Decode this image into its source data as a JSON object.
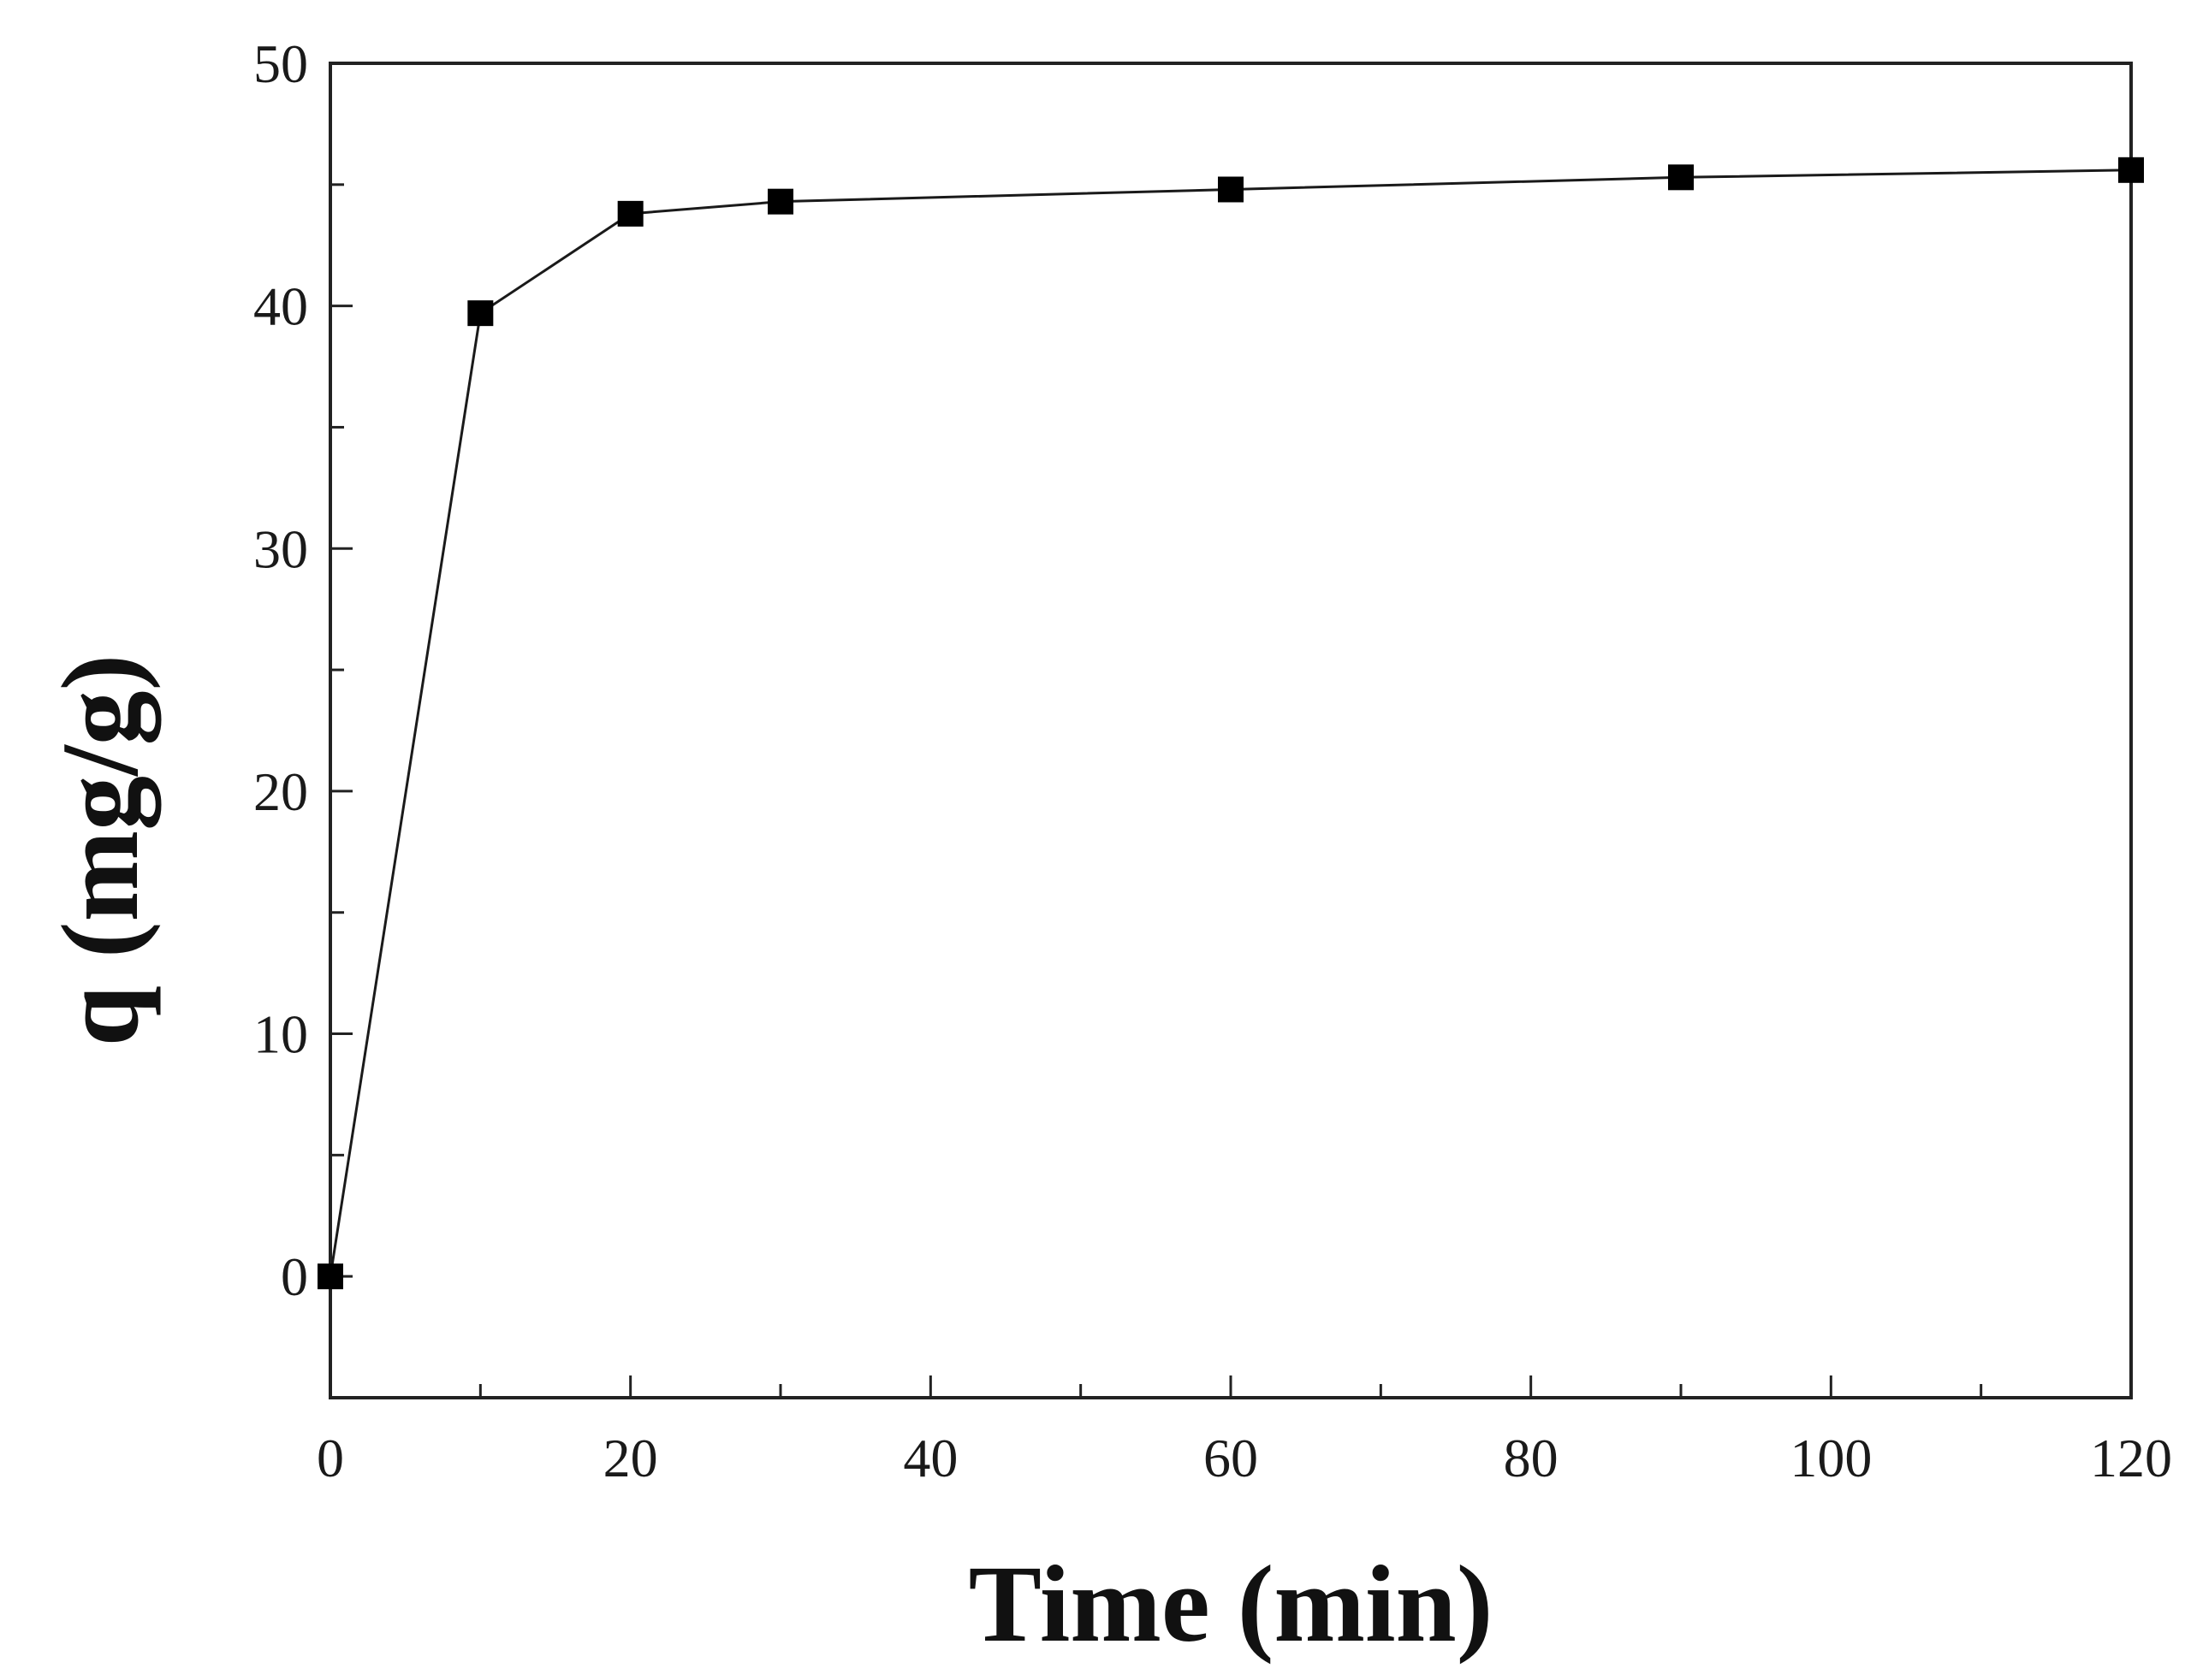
{
  "chart_data": {
    "type": "line",
    "title": "",
    "xlabel": "Time (min)",
    "ylabel": "q (mg/g)",
    "xlim": [
      0,
      120
    ],
    "ylim": [
      -5,
      50
    ],
    "x_ticks": [
      0,
      20,
      40,
      60,
      80,
      100,
      120
    ],
    "x_tick_labels": [
      "0",
      "20",
      "40",
      "60",
      "80",
      "100",
      "120"
    ],
    "y_ticks": [
      0,
      10,
      20,
      30,
      40,
      50
    ],
    "y_tick_labels": [
      "0",
      "10",
      "20",
      "30",
      "40",
      "50"
    ],
    "grid": false,
    "legend": "none",
    "marker": "square",
    "series": [
      {
        "x": [
          0,
          10,
          20,
          30,
          60,
          90,
          120
        ],
        "y": [
          0,
          39.7,
          43.8,
          44.3,
          44.8,
          45.3,
          45.6
        ]
      }
    ],
    "colors": {
      "line": "#1a1a1a",
      "marker": "#000000",
      "axis": "#222222"
    }
  }
}
